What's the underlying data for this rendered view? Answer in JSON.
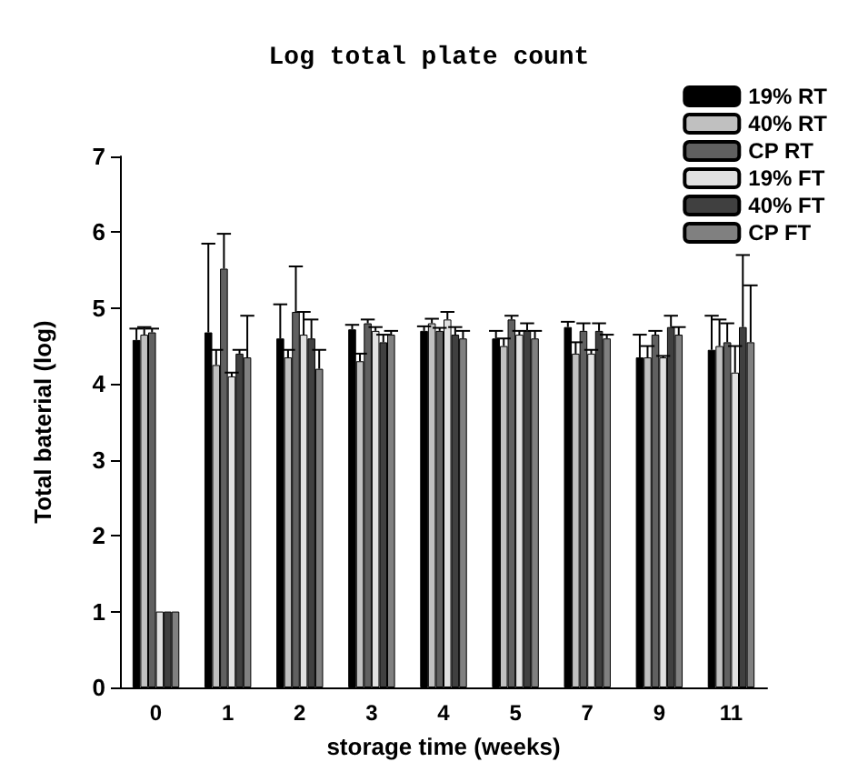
{
  "chart_data": {
    "type": "bar",
    "title": "Log total plate count",
    "xlabel": "storage time (weeks)",
    "ylabel": "Total baterial (log)",
    "categories": [
      "0",
      "1",
      "2",
      "3",
      "4",
      "5",
      "7",
      "9",
      "11"
    ],
    "ylim": [
      0,
      7
    ],
    "yticks": [
      0,
      1,
      2,
      3,
      4,
      5,
      6,
      7
    ],
    "grid": false,
    "legend": "top right",
    "series": [
      {
        "name": "19% RT",
        "color": "#000000",
        "values": [
          4.58,
          4.68,
          4.6,
          4.72,
          4.7,
          4.6,
          4.75,
          4.35,
          4.45
        ],
        "errors": [
          [
            4.58,
            4.73
          ],
          [
            4.68,
            5.85
          ],
          [
            4.6,
            5.05
          ],
          [
            4.72,
            4.78
          ],
          [
            4.7,
            4.76
          ],
          [
            4.6,
            4.7
          ],
          [
            4.75,
            4.82
          ],
          [
            4.35,
            4.65
          ],
          [
            4.45,
            4.9
          ]
        ]
      },
      {
        "name": "40% RT",
        "color": "#c0c0c0",
        "values": [
          4.65,
          4.25,
          4.35,
          4.3,
          4.8,
          4.5,
          4.4,
          4.35,
          4.5
        ],
        "errors": [
          [
            4.65,
            4.75
          ],
          [
            4.25,
            4.45
          ],
          [
            4.35,
            4.45
          ],
          [
            4.3,
            4.4
          ],
          [
            4.8,
            4.86
          ],
          [
            4.5,
            4.6
          ],
          [
            4.4,
            4.55
          ],
          [
            4.35,
            4.5
          ],
          [
            4.5,
            4.85
          ]
        ]
      },
      {
        "name": "CP RT",
        "color": "#606060",
        "values": [
          4.68,
          5.52,
          4.95,
          4.8,
          4.7,
          4.85,
          4.7,
          4.65,
          4.55
        ],
        "errors": [
          [
            4.68,
            4.73
          ],
          [
            5.52,
            5.98
          ],
          [
            4.95,
            5.55
          ],
          [
            4.8,
            4.85
          ],
          [
            4.7,
            4.74
          ],
          [
            4.85,
            4.9
          ],
          [
            4.7,
            4.8
          ],
          [
            4.65,
            4.7
          ],
          [
            4.55,
            4.8
          ]
        ]
      },
      {
        "name": "19% FT",
        "color": "#e0e0e0",
        "values": [
          1,
          4.1,
          4.65,
          4.7,
          4.85,
          4.65,
          4.4,
          4.35,
          4.15
        ],
        "errors": [
          null,
          [
            4.1,
            4.15
          ],
          [
            4.65,
            4.95
          ],
          [
            4.7,
            4.75
          ],
          [
            4.85,
            4.95
          ],
          [
            4.65,
            4.7
          ],
          [
            4.4,
            4.45
          ],
          [
            4.35,
            4.37
          ],
          [
            4.15,
            4.5
          ]
        ]
      },
      {
        "name": "40% FT",
        "color": "#404040",
        "values": [
          1,
          4.4,
          4.6,
          4.55,
          4.65,
          4.7,
          4.7,
          4.75,
          4.75
        ],
        "errors": [
          null,
          [
            4.4,
            4.45
          ],
          [
            4.6,
            4.85
          ],
          [
            4.55,
            4.65
          ],
          [
            4.65,
            4.75
          ],
          [
            4.7,
            4.8
          ],
          [
            4.7,
            4.8
          ],
          [
            4.75,
            4.9
          ],
          [
            4.75,
            5.7
          ]
        ]
      },
      {
        "name": "CP FT",
        "color": "#808080",
        "values": [
          1,
          4.35,
          4.2,
          4.65,
          4.6,
          4.6,
          4.6,
          4.65,
          4.55
        ],
        "errors": [
          null,
          [
            4.35,
            4.9
          ],
          [
            4.2,
            4.45
          ],
          [
            4.65,
            4.7
          ],
          [
            4.6,
            4.7
          ],
          [
            4.6,
            4.7
          ],
          [
            4.6,
            4.65
          ],
          [
            4.65,
            4.75
          ],
          [
            4.55,
            5.3
          ]
        ]
      }
    ]
  }
}
